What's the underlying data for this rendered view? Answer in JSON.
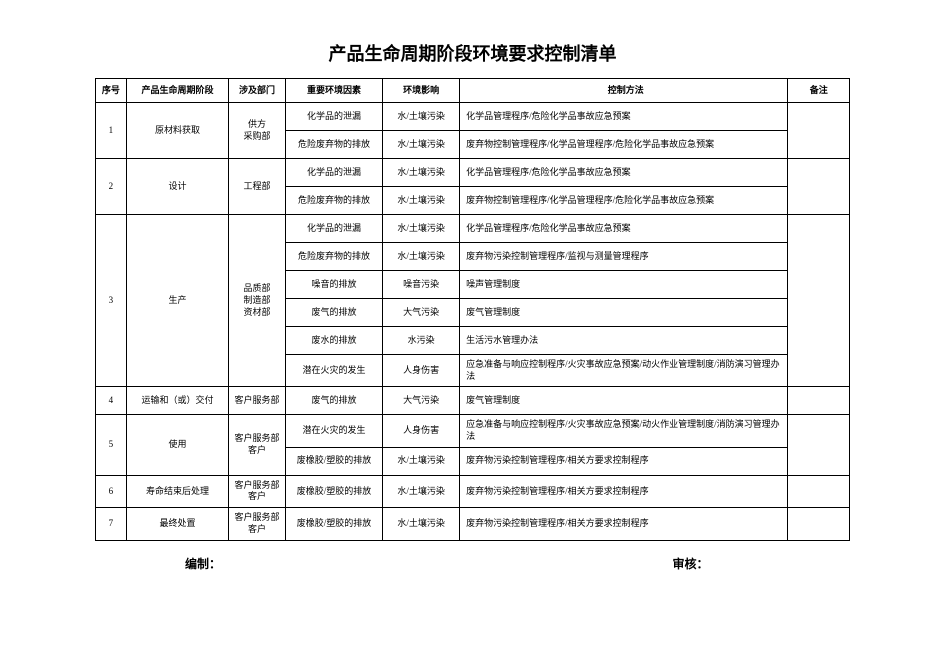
{
  "title": "产品生命周期阶段环境要求控制清单",
  "columns": [
    "序号",
    "产品生命周期阶段",
    "涉及部门",
    "重要环境因素",
    "环境影响",
    "控制方法",
    "备注"
  ],
  "footer": {
    "compile": "编制：",
    "review": "审核："
  },
  "rows": [
    {
      "seq": "1",
      "stage": "原材料获取",
      "dept": "供方\n采购部",
      "factor": "化学品的泄漏",
      "impact": "水/土壤污染",
      "ctrl": "化学品管理程序/危险化学品事故应急预案",
      "note": "",
      "seqRowspan": 2,
      "stageRowspan": 2,
      "deptRowspan": 2,
      "noteRowspan": 2
    },
    {
      "factor": "危险废弃物的排放",
      "impact": "水/土壤污染",
      "ctrl": "废弃物控制管理程序/化学品管理程序/危险化学品事故应急预案"
    },
    {
      "seq": "2",
      "stage": "设计",
      "dept": "工程部",
      "factor": "化学品的泄漏",
      "impact": "水/土壤污染",
      "ctrl": "化学品管理程序/危险化学品事故应急预案",
      "note": "",
      "seqRowspan": 2,
      "stageRowspan": 2,
      "deptRowspan": 2,
      "noteRowspan": 2
    },
    {
      "factor": "危险废弃物的排放",
      "impact": "水/土壤污染",
      "ctrl": "废弃物控制管理程序/化学品管理程序/危险化学品事故应急预案"
    },
    {
      "seq": "3",
      "stage": "生产",
      "dept": "品质部\n制造部\n资材部",
      "factor": "化学品的泄漏",
      "impact": "水/土壤污染",
      "ctrl": "化学品管理程序/危险化学品事故应急预案",
      "note": "",
      "seqRowspan": 6,
      "stageRowspan": 6,
      "deptRowspan": 6,
      "noteRowspan": 6
    },
    {
      "factor": "危险废弃物的排放",
      "impact": "水/土壤污染",
      "ctrl": "废弃物污染控制管理程序/监视与测量管理程序"
    },
    {
      "factor": "噪音的排放",
      "impact": "噪音污染",
      "ctrl": "噪声管理制度"
    },
    {
      "factor": "废气的排放",
      "impact": "大气污染",
      "ctrl": "废气管理制度"
    },
    {
      "factor": "废水的排放",
      "impact": "水污染",
      "ctrl": "生活污水管理办法"
    },
    {
      "factor": "潜在火灾的发生",
      "impact": "人身伤害",
      "ctrl": "应急准备与响应控制程序/火灾事故应急预案/动火作业管理制度/消防演习管理办法"
    },
    {
      "seq": "4",
      "stage": "运输和（或）交付",
      "dept": "客户服务部",
      "factor": "废气的排放",
      "impact": "大气污染",
      "ctrl": "废气管理制度",
      "note": ""
    },
    {
      "seq": "5",
      "stage": "使用",
      "dept": "客户服务部\n客户",
      "factor": "潜在火灾的发生",
      "impact": "人身伤害",
      "ctrl": "应急准备与响应控制程序/火灾事故应急预案/动火作业管理制度/消防演习管理办法",
      "note": "",
      "seqRowspan": 2,
      "stageRowspan": 2,
      "deptRowspan": 2,
      "noteRowspan": 2
    },
    {
      "factor": "废橡胶/塑胶的排放",
      "impact": "水/土壤污染",
      "ctrl": "废弃物污染控制管理程序/相关方要求控制程序"
    },
    {
      "seq": "6",
      "stage": "寿命结束后处理",
      "dept": "客户服务部\n客户",
      "factor": "废橡胶/塑胶的排放",
      "impact": "水/土壤污染",
      "ctrl": "废弃物污染控制管理程序/相关方要求控制程序",
      "note": ""
    },
    {
      "seq": "7",
      "stage": "最终处置",
      "dept": "客户服务部\n客户",
      "factor": "废橡胶/塑胶的排放",
      "impact": "水/土壤污染",
      "ctrl": "废弃物污染控制管理程序/相关方要求控制程序",
      "note": ""
    }
  ]
}
